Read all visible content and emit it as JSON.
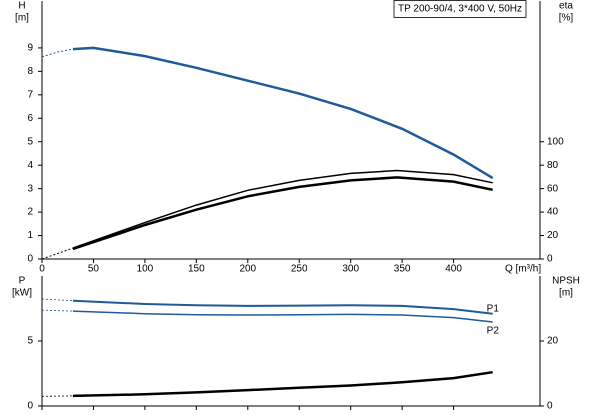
{
  "title": "TP 200-90/4, 3*400 V, 50Hz",
  "chart_data": [
    {
      "type": "line",
      "y_label": "H",
      "y_unit": "[m]",
      "y2_label": "eta",
      "y2_unit": "[%]",
      "x_label": "Q [m³/h]",
      "xlim": [
        0,
        484
      ],
      "xticks": [
        0,
        50,
        100,
        150,
        200,
        250,
        300,
        350,
        400
      ],
      "x_tick_labels": true,
      "ylim": [
        0,
        11
      ],
      "yticks": [
        0,
        1,
        2,
        3,
        4,
        5,
        6,
        7,
        8,
        9
      ],
      "y2lim": [
        0,
        220
      ],
      "y2ticks": [
        0,
        20,
        40,
        60,
        80,
        100
      ],
      "series": [
        {
          "color": "#1f5a9a",
          "line_width": 1,
          "dashed": true,
          "x": [
            0,
            15,
            30
          ],
          "values": [
            8.62,
            8.82,
            8.95
          ]
        },
        {
          "color": "#1f5a9a",
          "line_width": 2.5,
          "x": [
            30,
            50,
            100,
            150,
            200,
            250,
            300,
            350,
            400,
            438
          ],
          "values": [
            8.95,
            9.0,
            8.65,
            8.15,
            7.6,
            7.05,
            6.4,
            5.55,
            4.45,
            3.45
          ]
        },
        {
          "color": "#000000",
          "line_width": 1,
          "dashed": true,
          "axis": "y2",
          "x": [
            0,
            30
          ],
          "values": [
            0,
            9.3
          ]
        },
        {
          "color": "#000000",
          "line_width": 1.5,
          "axis": "y2",
          "x": [
            30,
            100,
            150,
            200,
            250,
            300,
            345,
            400,
            438
          ],
          "values": [
            9.3,
            31,
            46,
            58.6,
            67,
            73,
            75.5,
            72,
            65
          ]
        },
        {
          "color": "#000000",
          "line_width": 2.5,
          "axis": "y2",
          "x": [
            30,
            100,
            150,
            200,
            250,
            300,
            345,
            400,
            438
          ],
          "values": [
            8.5,
            29,
            42,
            53.5,
            61.5,
            67,
            69.6,
            66,
            59
          ]
        }
      ]
    },
    {
      "type": "line",
      "y_label": "P",
      "y_unit": "[kW]",
      "y2_label": "NPSH",
      "y2_unit": "[m]",
      "xlim": [
        0,
        484
      ],
      "xticks": [
        0,
        50,
        100,
        150,
        200,
        250,
        300,
        350,
        400
      ],
      "x_tick_labels": false,
      "ylim": [
        0,
        10
      ],
      "yticks": [
        0,
        5
      ],
      "y2lim": [
        0,
        40
      ],
      "y2ticks": [
        0,
        20
      ],
      "series": [
        {
          "color": "#1f5a9a",
          "line_width": 0.8,
          "dashed": true,
          "x": [
            0,
            30
          ],
          "values": [
            8.23,
            8.1
          ]
        },
        {
          "name": "P1",
          "color": "#1f5a9a",
          "line_width": 2,
          "x": [
            30,
            100,
            150,
            200,
            250,
            300,
            350,
            400,
            438
          ],
          "values": [
            8.1,
            7.85,
            7.75,
            7.7,
            7.72,
            7.75,
            7.7,
            7.45,
            7.1
          ]
        },
        {
          "color": "#1f5a9a",
          "line_width": 0.8,
          "dashed": true,
          "x": [
            0,
            30
          ],
          "values": [
            7.38,
            7.3
          ]
        },
        {
          "name": "P2",
          "color": "#1f5a9a",
          "line_width": 1.5,
          "x": [
            30,
            100,
            150,
            200,
            250,
            300,
            350,
            400,
            438
          ],
          "values": [
            7.3,
            7.1,
            7.02,
            7.0,
            7.02,
            7.05,
            7.0,
            6.8,
            6.46
          ]
        },
        {
          "color": "#000000",
          "line_width": 0.8,
          "dashed": true,
          "axis": "y2",
          "x": [
            0,
            30
          ],
          "values": [
            3.0,
            3.1
          ]
        },
        {
          "color": "#000000",
          "line_width": 2.5,
          "axis": "y2",
          "x": [
            30,
            100,
            150,
            200,
            250,
            300,
            350,
            400,
            438
          ],
          "values": [
            3.1,
            3.6,
            4.2,
            4.9,
            5.6,
            6.3,
            7.3,
            8.6,
            10.4
          ]
        }
      ]
    }
  ]
}
